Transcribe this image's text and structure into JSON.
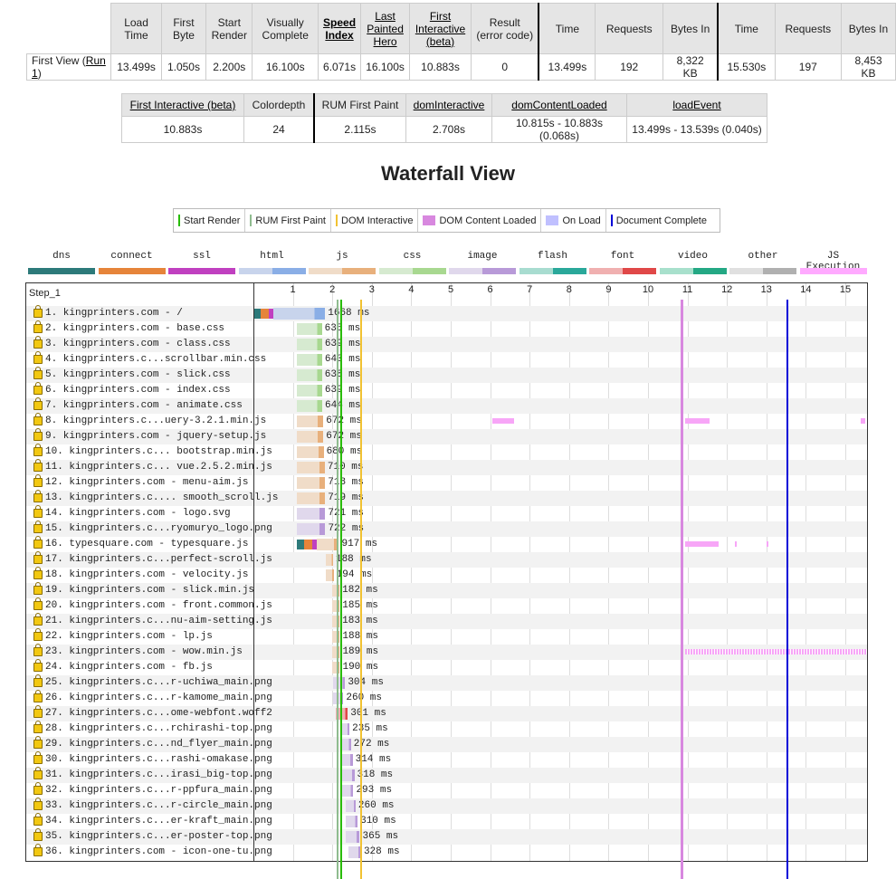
{
  "summary": {
    "headers": [
      "Load Time",
      "First Byte",
      "Start Render",
      "Visually Complete",
      "Speed Index",
      "Last Painted Hero",
      "First Interactive (beta)",
      "Result (error code)",
      "Time",
      "Requests",
      "Bytes In",
      "Time",
      "Requests",
      "Bytes In"
    ],
    "row_label": "First View (",
    "run_link": "Run 1",
    "row_label_end": ")",
    "values": [
      "13.499s",
      "1.050s",
      "2.200s",
      "16.100s",
      "6.071s",
      "16.100s",
      "10.883s",
      "0",
      "13.499s",
      "192",
      "8,322 KB",
      "15.530s",
      "197",
      "8,453 KB"
    ]
  },
  "metrics": {
    "headers": [
      "First Interactive (beta)",
      "Colordepth",
      "RUM First Paint",
      "domInteractive",
      "domContentLoaded",
      "loadEvent"
    ],
    "values": [
      "10.883s",
      "24",
      "2.115s",
      "2.708s",
      "10.815s - 10.883s (0.068s)",
      "13.499s - 13.539s (0.040s)"
    ]
  },
  "waterfall_title": "Waterfall View",
  "legend": [
    {
      "label": "Start Render",
      "color": "#28bc00",
      "kind": "line"
    },
    {
      "label": "RUM First Paint",
      "color": "#8fbc8f",
      "kind": "line"
    },
    {
      "label": "DOM Interactive",
      "color": "#f1c232",
      "kind": "line"
    },
    {
      "label": "DOM Content Loaded",
      "color": "#d888df",
      "kind": "box"
    },
    {
      "label": "On Load",
      "color": "#c0c0ff",
      "kind": "box"
    },
    {
      "label": "Document Complete",
      "color": "#0000d8",
      "kind": "line"
    }
  ],
  "keys": [
    {
      "label": "dns",
      "colors": [
        "#2d7a7a",
        "#2d7a7a"
      ]
    },
    {
      "label": "connect",
      "colors": [
        "#e6843a",
        "#e6843a"
      ]
    },
    {
      "label": "ssl",
      "colors": [
        "#c040c0",
        "#c040c0"
      ]
    },
    {
      "label": "html",
      "colors": [
        "#c8d4ec",
        "#8aaee6"
      ]
    },
    {
      "label": "js",
      "colors": [
        "#f0dcc8",
        "#e8b07c"
      ]
    },
    {
      "label": "css",
      "colors": [
        "#d6ead0",
        "#a8d890"
      ]
    },
    {
      "label": "image",
      "colors": [
        "#e0d8ec",
        "#b89ad8"
      ]
    },
    {
      "label": "flash",
      "colors": [
        "#a8dcd0",
        "#2aa89a"
      ]
    },
    {
      "label": "font",
      "colors": [
        "#f0b0b0",
        "#e04848"
      ]
    },
    {
      "label": "video",
      "colors": [
        "#a8e0cc",
        "#24a884"
      ]
    },
    {
      "label": "other",
      "colors": [
        "#e0e0e0",
        "#b0b0b0"
      ]
    },
    {
      "label": "JS Execution",
      "colors": [
        "#ffaaff",
        "#ffaaff"
      ]
    }
  ],
  "step_label": "Step_1",
  "ticks": [
    "1",
    "2",
    "3",
    "4",
    "5",
    "6",
    "7",
    "8",
    "9",
    "10",
    "11",
    "12",
    "13",
    "14",
    "15"
  ],
  "requests": [
    {
      "label": "1. kingprinters.com - /",
      "start": 0.0,
      "dur": 1668,
      "type": "html",
      "conn": true,
      "ms": "1668 ms"
    },
    {
      "label": "2. kingprinters.com - base.css",
      "start": 1.1,
      "dur": 635,
      "type": "css",
      "ms": "635 ms"
    },
    {
      "label": "3. kingprinters.com - class.css",
      "start": 1.1,
      "dur": 639,
      "type": "css",
      "ms": "639 ms"
    },
    {
      "label": "4. kingprinters.c...scrollbar.min.css",
      "start": 1.1,
      "dur": 640,
      "type": "css",
      "ms": "640 ms"
    },
    {
      "label": "5. kingprinters.com - slick.css",
      "start": 1.1,
      "dur": 638,
      "type": "css",
      "ms": "638 ms"
    },
    {
      "label": "6. kingprinters.com - index.css",
      "start": 1.1,
      "dur": 639,
      "type": "css",
      "ms": "639 ms"
    },
    {
      "label": "7. kingprinters.com - animate.css",
      "start": 1.1,
      "dur": 644,
      "type": "css",
      "ms": "644 ms"
    },
    {
      "label": "8. kingprinters.c...uery-3.2.1.min.js",
      "start": 1.1,
      "dur": 672,
      "type": "js",
      "ms": "672 ms"
    },
    {
      "label": "9. kingprinters.com - jquery-setup.js",
      "start": 1.1,
      "dur": 672,
      "type": "js",
      "ms": "672 ms"
    },
    {
      "label": "10. kingprinters.c... bootstrap.min.js",
      "start": 1.1,
      "dur": 680,
      "type": "js",
      "ms": "680 ms"
    },
    {
      "label": "11. kingprinters.c... vue.2.5.2.min.js",
      "start": 1.1,
      "dur": 710,
      "type": "js",
      "ms": "710 ms"
    },
    {
      "label": "12. kingprinters.com - menu-aim.js",
      "start": 1.1,
      "dur": 718,
      "type": "js",
      "ms": "718 ms"
    },
    {
      "label": "13. kingprinters.c.... smooth_scroll.js",
      "start": 1.1,
      "dur": 719,
      "type": "js",
      "ms": "719 ms"
    },
    {
      "label": "14. kingprinters.com - logo.svg",
      "start": 1.1,
      "dur": 721,
      "type": "image",
      "ms": "721 ms"
    },
    {
      "label": "15. kingprinters.c...ryomuryo_logo.png",
      "start": 1.1,
      "dur": 722,
      "type": "image",
      "ms": "722 ms"
    },
    {
      "label": "16. typesquare.com - typesquare.js",
      "start": 1.1,
      "dur": 917,
      "type": "js",
      "conn": true,
      "ms": "917 ms"
    },
    {
      "label": "17. kingprinters.c...perfect-scroll.js",
      "start": 1.83,
      "dur": 188,
      "type": "js",
      "ms": "188 ms"
    },
    {
      "label": "18. kingprinters.com - velocity.js",
      "start": 1.84,
      "dur": 194,
      "type": "js",
      "ms": "194 ms"
    },
    {
      "label": "19. kingprinters.com - slick.min.js",
      "start": 2.0,
      "dur": 182,
      "type": "js",
      "ms": "182 ms"
    },
    {
      "label": "20. kingprinters.com - front.common.js",
      "start": 2.0,
      "dur": 185,
      "type": "js",
      "ms": "185 ms"
    },
    {
      "label": "21. kingprinters.c...nu-aim-setting.js",
      "start": 2.0,
      "dur": 183,
      "type": "js",
      "ms": "183 ms"
    },
    {
      "label": "22. kingprinters.com - lp.js",
      "start": 2.0,
      "dur": 188,
      "type": "js",
      "ms": "188 ms"
    },
    {
      "label": "23. kingprinters.com - wow.min.js",
      "start": 2.0,
      "dur": 189,
      "type": "js",
      "ms": "189 ms"
    },
    {
      "label": "24. kingprinters.com - fb.js",
      "start": 2.0,
      "dur": 190,
      "type": "js",
      "ms": "190 ms"
    },
    {
      "label": "25. kingprinters.c...r-uchiwa_main.png",
      "start": 2.02,
      "dur": 304,
      "type": "image",
      "ms": "304 ms"
    },
    {
      "label": "26. kingprinters.c...r-kamome_main.png",
      "start": 2.02,
      "dur": 260,
      "type": "image",
      "ms": "260 ms"
    },
    {
      "label": "27. kingprinters.c...ome-webfont.woff2",
      "start": 2.09,
      "dur": 301,
      "type": "font",
      "ms": "301 ms"
    },
    {
      "label": "28. kingprinters.c...rchirashi-top.png",
      "start": 2.2,
      "dur": 235,
      "type": "image",
      "ms": "235 ms"
    },
    {
      "label": "29. kingprinters.c...nd_flyer_main.png",
      "start": 2.2,
      "dur": 272,
      "type": "image",
      "ms": "272 ms"
    },
    {
      "label": "30. kingprinters.c...rashi-omakase.png",
      "start": 2.2,
      "dur": 314,
      "type": "image",
      "ms": "314 ms"
    },
    {
      "label": "31. kingprinters.c...irasi_big-top.png",
      "start": 2.24,
      "dur": 318,
      "type": "image",
      "ms": "318 ms"
    },
    {
      "label": "32. kingprinters.c...r-ppfura_main.png",
      "start": 2.24,
      "dur": 293,
      "type": "image",
      "ms": "293 ms"
    },
    {
      "label": "33. kingprinters.c...r-circle_main.png",
      "start": 2.33,
      "dur": 260,
      "type": "image",
      "ms": "260 ms"
    },
    {
      "label": "34. kingprinters.c...er-kraft_main.png",
      "start": 2.33,
      "dur": 310,
      "type": "image",
      "ms": "310 ms"
    },
    {
      "label": "35. kingprinters.c...er-poster-top.png",
      "start": 2.33,
      "dur": 365,
      "type": "image",
      "ms": "365 ms"
    },
    {
      "label": "36. kingprinters.com - icon-one-tu.png",
      "start": 2.4,
      "dur": 328,
      "type": "image",
      "ms": "328 ms"
    }
  ],
  "markers": {
    "start_render": 2.2,
    "rum_first_paint": 2.115,
    "dom_interactive": 2.708,
    "dom_content_loaded": [
      10.815,
      10.883
    ],
    "document_complete": 13.499
  }
}
